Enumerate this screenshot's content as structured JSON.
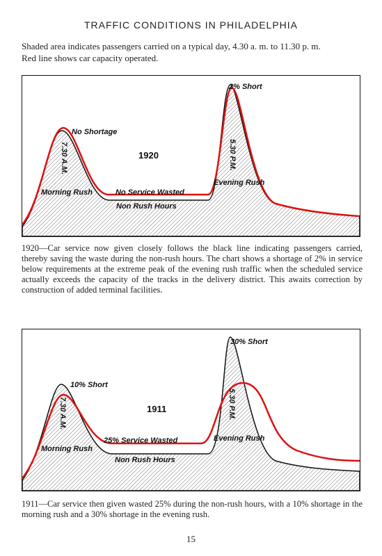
{
  "header": {
    "title": "TRAFFIC CONDITIONS IN PHILADELPHIA"
  },
  "intro": [
    "Shaded area indicates passengers carried on a typical day, 4.30 a. m. to 11.30 p. m.",
    "Red line shows car capacity operated."
  ],
  "figures": [
    {
      "year": "1920",
      "peak_note": "2% Short",
      "morning_note": "No Shortage",
      "morning_time": "7.30 A.M.",
      "evening_time": "5.30 P.M.",
      "morning_label": "Morning Rush",
      "evening_label": "Evening Rush",
      "offpeak_note": "No Service Wasted",
      "offpeak_label": "Non Rush Hours",
      "caption": "1920—Car service now given closely follows the black line indicating passengers carried, thereby saving the waste during the non-rush hours. The chart shows a shortage of 2% in service below requirements at the extreme peak of the evening rush traffic when the scheduled service actually exceeds the capacity of the tracks in the delivery district. This awaits correction by construction of added terminal facilities."
    },
    {
      "year": "1911",
      "peak_note": "30% Short",
      "morning_note": "10% Short",
      "morning_time": "7.30 A.M.",
      "evening_time": "5.30 P.M.",
      "morning_label": "Morning Rush",
      "evening_label": "Evening Rush",
      "offpeak_note": "25% Service Wasted",
      "offpeak_label": "Non Rush Hours",
      "caption": "1911—Car service then given wasted 25% during the non-rush hours, with a 10% shortage in the morning rush and a 30% shortage in the evening rush."
    }
  ],
  "page_number": "15"
}
